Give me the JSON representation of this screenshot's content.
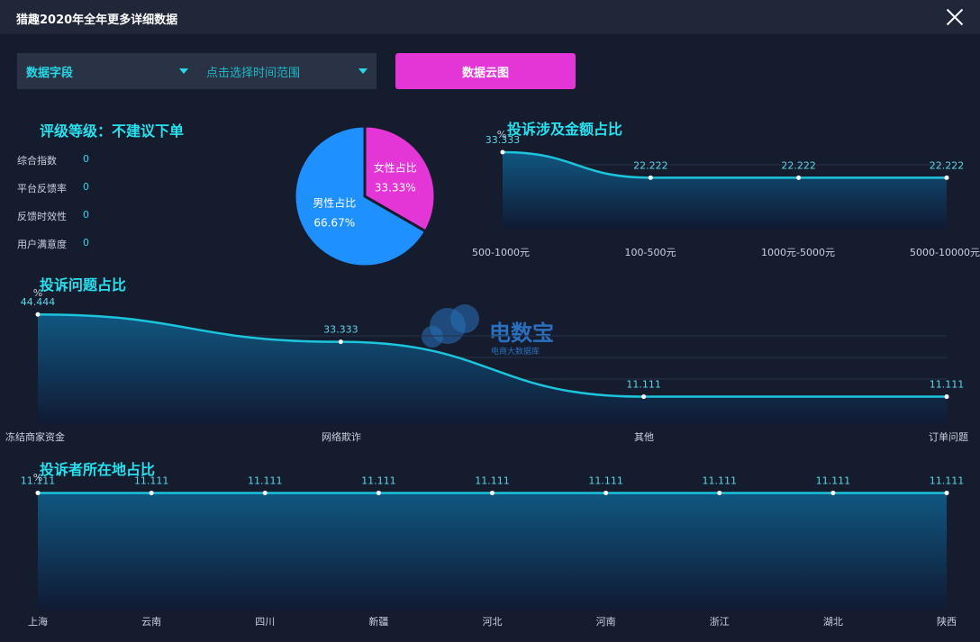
{
  "window": {
    "title": "猎趣2020年全年更多详细数据"
  },
  "filters": {
    "field_label": "数据字段",
    "range_label": "点击选择时间范围",
    "cloud_button": "数据云图"
  },
  "rating": {
    "title": "评级等级：不建议下单",
    "metrics": [
      {
        "label": "综合指数",
        "value": "0"
      },
      {
        "label": "平台反馈率",
        "value": "0"
      },
      {
        "label": "反馈时效性",
        "value": "0"
      },
      {
        "label": "用户满意度",
        "value": "0"
      }
    ]
  },
  "watermark": {
    "brand": "电数宝",
    "sub": "电商大数据库"
  },
  "colors": {
    "accent": "#28e1ee",
    "female": "#e435d6",
    "male": "#1e90ff",
    "line": "#1cc4dc",
    "background": "#151c2e"
  },
  "chart_data": [
    {
      "type": "pie",
      "title": "",
      "slices": [
        {
          "name": "女性占比",
          "value": 33.33,
          "label": "33.33%"
        },
        {
          "name": "男性占比",
          "value": 66.67,
          "label": "66.67%"
        }
      ]
    },
    {
      "type": "area",
      "title": "投诉涉及金额占比",
      "ylabel": "%",
      "categories": [
        "500-1000元",
        "100-500元",
        "1000元-5000元",
        "5000-10000元"
      ],
      "values": [
        33.333,
        22.222,
        22.222,
        22.222
      ],
      "labels": [
        "33.333",
        "22.222",
        "22.222",
        "22.222"
      ],
      "ylim": [
        0,
        40
      ]
    },
    {
      "type": "area",
      "title": "投诉问题占比",
      "ylabel": "%",
      "categories": [
        "冻结商家资金",
        "网络欺诈",
        "其他",
        "订单问题"
      ],
      "values": [
        44.444,
        33.333,
        11.111,
        11.111
      ],
      "labels": [
        "44.444",
        "33.333",
        "11.111",
        "11.111"
      ],
      "ylim": [
        0,
        50
      ]
    },
    {
      "type": "area",
      "title": "投诉者所在地占比",
      "ylabel": "%",
      "categories": [
        "上海",
        "云南",
        "四川",
        "新疆",
        "河北",
        "河南",
        "浙江",
        "湖北",
        "陕西"
      ],
      "values": [
        11.111,
        11.111,
        11.111,
        11.111,
        11.111,
        11.111,
        11.111,
        11.111,
        11.111
      ],
      "labels": [
        "11.111",
        "11.111",
        "11.111",
        "11.111",
        "11.111",
        "11.111",
        "11.111",
        "11.111",
        "11.111"
      ],
      "ylim": [
        0,
        12
      ]
    }
  ]
}
